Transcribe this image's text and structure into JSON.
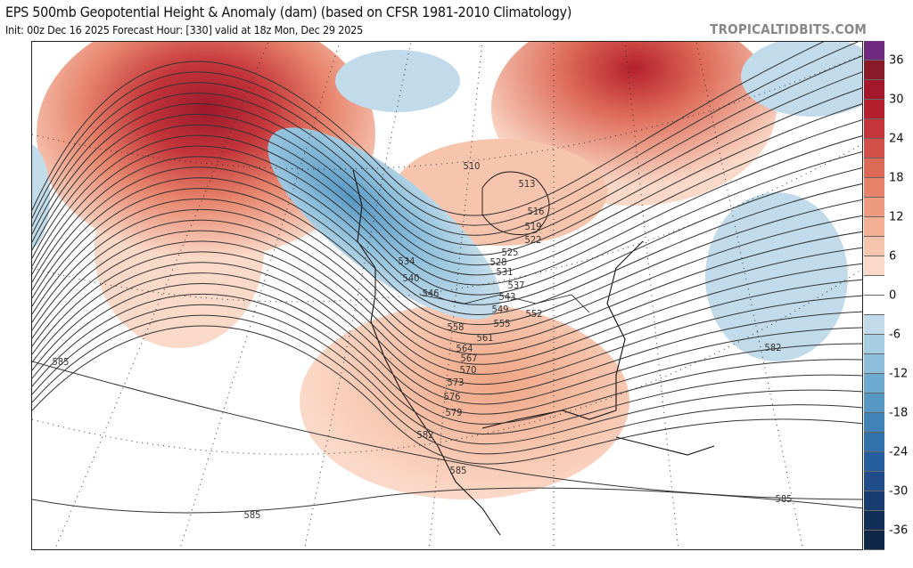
{
  "header": {
    "title": "EPS 500mb Geopotential Height & Anomaly (dam) (based on CFSR 1981-2010 Climatology)",
    "subtitle": "Init: 00z Dec 16 2025   Forecast Hour: [330]   valid at 18z Mon, Dec 29 2025",
    "brand": "TROPICALTIDBITS.COM"
  },
  "colorbar": {
    "labels": [
      "36",
      "30",
      "24",
      "18",
      "12",
      "6",
      "0",
      "-6",
      "-12",
      "-18",
      "-24",
      "-30",
      "-36"
    ],
    "colors": [
      "#6f2a80",
      "#8a1a28",
      "#a3192b",
      "#b5202e",
      "#c4353b",
      "#d24f48",
      "#dd6a57",
      "#e6826a",
      "#ee9a7e",
      "#f3b095",
      "#f7c5ae",
      "#fbd9c8",
      "#ffffff",
      "#ffffff",
      "#c1dbea",
      "#a7cde3",
      "#8cbedb",
      "#6ea9d0",
      "#5797c4",
      "#4182b7",
      "#3171ac",
      "#275e9f",
      "#204c8a",
      "#183c70",
      "#122f58",
      "#0f2749"
    ]
  },
  "contour_labels": [
    "510",
    "513",
    "516",
    "519",
    "522",
    "525",
    "528",
    "531",
    "537",
    "543",
    "549",
    "552",
    "555",
    "558",
    "561",
    "564",
    "567",
    "570",
    "573",
    "576",
    "579",
    "582",
    "585",
    "534",
    "540",
    "546",
    "585",
    "585",
    "585",
    "582"
  ]
}
